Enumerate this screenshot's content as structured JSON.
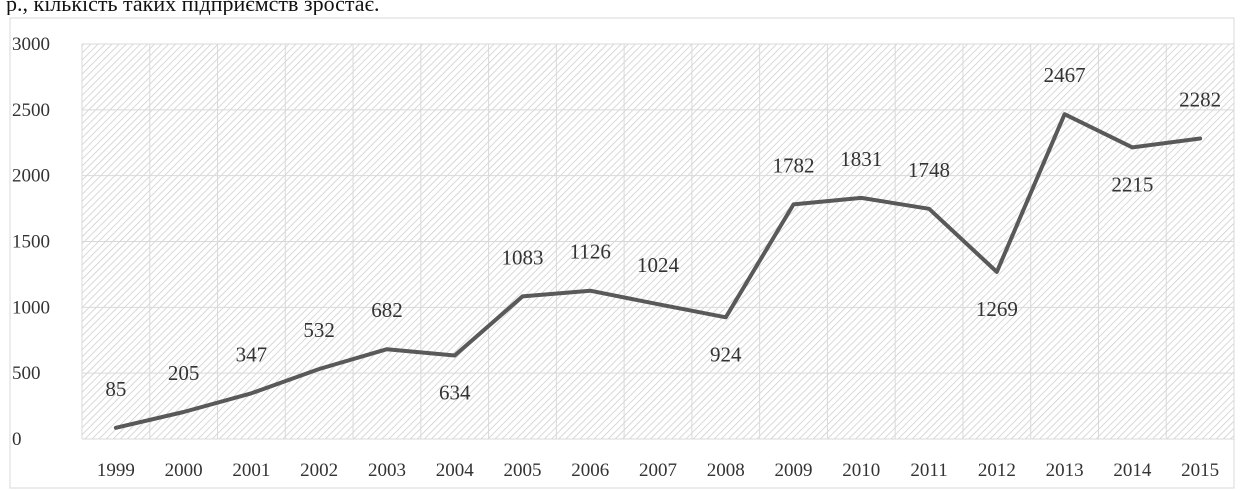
{
  "header": {
    "caption_fragment": "р., кількість таких підприємств зростає."
  },
  "chart_data": {
    "type": "line",
    "title": "",
    "xlabel": "",
    "ylabel": "",
    "categories": [
      "1999",
      "2000",
      "2001",
      "2002",
      "2003",
      "2004",
      "2005",
      "2006",
      "2007",
      "2008",
      "2009",
      "2010",
      "2011",
      "2012",
      "2013",
      "2014",
      "2015"
    ],
    "values": [
      85,
      205,
      347,
      532,
      682,
      634,
      1083,
      1126,
      1024,
      924,
      1782,
      1831,
      1748,
      1269,
      2467,
      2215,
      2282
    ],
    "data_labels": [
      "85",
      "205",
      "347",
      "532",
      "682",
      "634",
      "1083",
      "1126",
      "1024",
      "924",
      "1782",
      "1831",
      "1748",
      "1269",
      "2467",
      "2215",
      "2282"
    ],
    "ylim": [
      0,
      3000
    ],
    "yticks": [
      0,
      500,
      1000,
      1500,
      2000,
      2500,
      3000
    ],
    "ytick_labels": [
      "0",
      "500",
      "1000",
      "1500",
      "2000",
      "2500",
      "3000"
    ],
    "grid": true,
    "legend": "none",
    "colors": {
      "line": "#595959",
      "grid": "#d9d9d9",
      "plot_hatch": "#cfcfcf",
      "text": "#333333"
    }
  }
}
